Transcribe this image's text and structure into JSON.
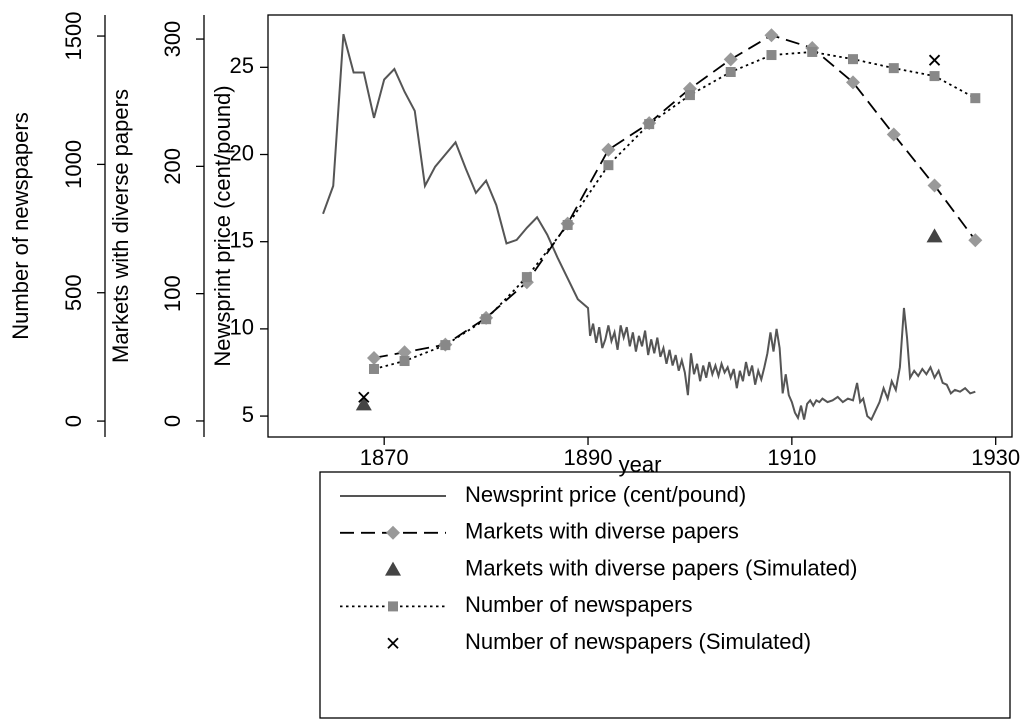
{
  "chart_data": {
    "type": "line",
    "xlabel": "year",
    "ylabel": "Newsprint price (cent/pound)",
    "y2label": "Markets with diverse papers",
    "y3label": "Number of newspapers",
    "xlim": [
      1858.6,
      1931.6
    ],
    "xticks": [
      1870,
      1890,
      1910,
      1930
    ],
    "ylim": [
      3.8,
      28
    ],
    "yticks": [
      5,
      10,
      15,
      20,
      25
    ],
    "y2lim": [
      -12.6,
      318.9
    ],
    "y2ticks": [
      0,
      100,
      200,
      300
    ],
    "y3lim": [
      -62,
      1582
    ],
    "y3ticks": [
      0,
      500,
      1000,
      1500
    ],
    "series": [
      {
        "name": "Newsprint price (cent/pound)",
        "color": "#555555",
        "axis": "y",
        "line": "solid",
        "marker": "none",
        "x": [
          1864,
          1865,
          1866,
          1867,
          1868,
          1869,
          1870,
          1871,
          1872,
          1873,
          1874,
          1875,
          1876,
          1877,
          1878,
          1879,
          1880,
          1881,
          1882,
          1883,
          1884,
          1885,
          1886,
          1887,
          1888,
          1889,
          1890,
          1890.2,
          1890.5,
          1890.8,
          1891.1,
          1891.4,
          1891.7,
          1892,
          1892.3,
          1892.6,
          1892.9,
          1893.2,
          1893.5,
          1893.8,
          1894.1,
          1894.4,
          1894.7,
          1895,
          1895.3,
          1895.6,
          1895.9,
          1896.2,
          1896.5,
          1896.8,
          1897.1,
          1897.4,
          1897.7,
          1898,
          1898.3,
          1898.6,
          1898.9,
          1899.2,
          1899.5,
          1899.8,
          1900.1,
          1900.4,
          1900.7,
          1901,
          1901.3,
          1901.6,
          1901.9,
          1902.2,
          1902.5,
          1902.8,
          1903.1,
          1903.4,
          1903.7,
          1904,
          1904.3,
          1904.6,
          1904.9,
          1905.2,
          1905.5,
          1905.8,
          1906.1,
          1906.4,
          1906.7,
          1907,
          1907.3,
          1907.6,
          1907.9,
          1908.2,
          1908.5,
          1908.8,
          1909.1,
          1909.4,
          1909.7,
          1910,
          1910.3,
          1910.6,
          1910.9,
          1911.2,
          1911.5,
          1911.8,
          1912.1,
          1912.4,
          1912.7,
          1913,
          1913.5,
          1914,
          1914.5,
          1915,
          1915.5,
          1916,
          1916.4,
          1916.7,
          1917,
          1917.4,
          1917.8,
          1918.2,
          1918.6,
          1919,
          1919.4,
          1919.8,
          1920.2,
          1920.6,
          1921,
          1921.3,
          1921.6,
          1922,
          1922.4,
          1922.8,
          1923.2,
          1923.6,
          1924,
          1924.4,
          1924.8,
          1925.2,
          1925.6,
          1926,
          1926.5,
          1927,
          1927.5,
          1928
        ],
        "values": [
          16.6,
          18.2,
          26.9,
          24.7,
          24.7,
          22.1,
          24.3,
          24.9,
          23.6,
          22.5,
          18.2,
          19.3,
          20.0,
          20.7,
          19.2,
          17.8,
          18.5,
          17.1,
          14.9,
          15.1,
          15.8,
          16.4,
          15.4,
          14.1,
          12.9,
          11.7,
          11.2,
          9.6,
          10.3,
          9.2,
          10.1,
          8.9,
          9.4,
          10.2,
          9.3,
          9.8,
          8.8,
          10.2,
          9.5,
          10.1,
          9.0,
          9.8,
          8.7,
          9.6,
          9.0,
          9.9,
          8.5,
          9.4,
          8.6,
          9.5,
          8.4,
          8.9,
          8.0,
          8.8,
          7.9,
          8.5,
          7.6,
          8.2,
          7.5,
          6.2,
          8.6,
          7.4,
          8.0,
          7.0,
          7.9,
          7.2,
          8.1,
          7.4,
          7.9,
          7.3,
          8.0,
          7.5,
          7.8,
          7.2,
          7.7,
          6.6,
          7.6,
          7.0,
          8.1,
          7.3,
          7.9,
          6.8,
          7.6,
          7.1,
          7.8,
          8.6,
          9.8,
          8.7,
          10.0,
          8.9,
          6.3,
          7.4,
          6.2,
          5.8,
          5.2,
          4.9,
          5.6,
          4.8,
          5.7,
          5.9,
          5.6,
          5.9,
          5.8,
          6.0,
          5.8,
          5.9,
          6.1,
          5.8,
          6.0,
          5.9,
          6.9,
          5.8,
          6.0,
          5.0,
          4.8,
          5.3,
          5.8,
          6.6,
          6.0,
          7.0,
          6.5,
          7.8,
          11.2,
          9.5,
          7.2,
          7.6,
          7.3,
          7.7,
          7.4,
          7.8,
          7.2,
          7.6,
          6.9,
          6.8,
          6.3,
          6.5,
          6.4,
          6.6,
          6.3,
          6.4
        ]
      },
      {
        "name": "Markets with diverse papers",
        "color": "#999999",
        "axis": "y2",
        "line": "dashed",
        "marker": "diamond",
        "x": [
          1869,
          1872,
          1876,
          1880,
          1884,
          1888,
          1892,
          1896,
          1900,
          1904,
          1908,
          1912,
          1916,
          1920,
          1924,
          1928
        ],
        "values": [
          49.5,
          54,
          60,
          81,
          109,
          155,
          213,
          234,
          261,
          284,
          303,
          293,
          266,
          225,
          185,
          142
        ]
      },
      {
        "name": "Markets with diverse papers (Simulated)",
        "color": "#444444",
        "axis": "y2",
        "line": "none",
        "marker": "triangle",
        "x": [
          1868,
          1924
        ],
        "values": [
          13,
          145
        ]
      },
      {
        "name": "Number of newspapers",
        "color": "#888888",
        "axis": "y3",
        "line": "dotted",
        "marker": "square",
        "x": [
          1869,
          1872,
          1876,
          1880,
          1884,
          1888,
          1892,
          1896,
          1900,
          1904,
          1908,
          1912,
          1916,
          1920,
          1924,
          1928
        ],
        "values": [
          203,
          234,
          296,
          397,
          561,
          764,
          997,
          1157,
          1270,
          1360,
          1426,
          1438,
          1410,
          1375,
          1344,
          1258
        ]
      },
      {
        "name": "Number of newspapers (Simulated)",
        "color": "#000000",
        "axis": "y3",
        "line": "none",
        "marker": "cross",
        "x": [
          1868,
          1924
        ],
        "values": [
          93,
          1406
        ]
      }
    ]
  }
}
